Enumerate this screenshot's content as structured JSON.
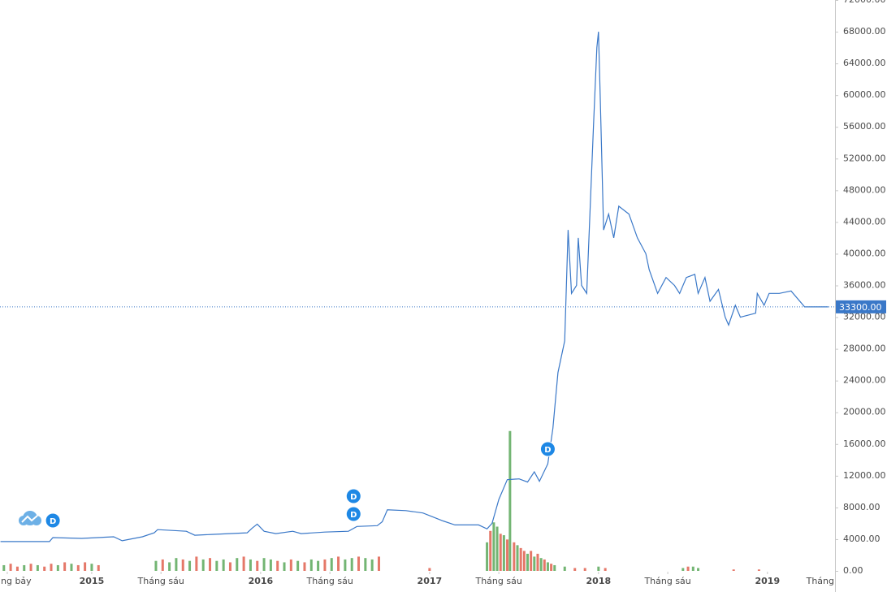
{
  "chart_data": {
    "type": "line",
    "color": "#3a78c8",
    "xlim": [
      2014.457,
      2019.4
    ],
    "xticks": [
      {
        "value": 2014.5,
        "label": "ng bảy"
      },
      2015,
      {
        "value": 2015.41,
        "label": "Tháng sáu"
      },
      2016,
      {
        "value": 2016.41,
        "label": "Tháng sáu"
      },
      2017,
      {
        "value": 2017.41,
        "label": "Tháng sáu"
      },
      2018,
      {
        "value": 2018.41,
        "label": "Tháng sáu"
      },
      2019,
      {
        "value": 2019.41,
        "label": "Tháng"
      }
    ],
    "ylim": [
      0,
      72000
    ],
    "yticks": [
      {
        "value": 0,
        "label": "0.00"
      },
      {
        "value": 4000,
        "label": "4000.00"
      },
      {
        "value": 8000,
        "label": "8000.00"
      },
      {
        "value": 12000,
        "label": "12000.00"
      },
      {
        "value": 16000,
        "label": "16000.00"
      },
      {
        "value": 20000,
        "label": "20000.00"
      },
      {
        "value": 24000,
        "label": "24000.00"
      },
      {
        "value": 28000,
        "label": "28000.00"
      },
      {
        "value": 32000,
        "label": "32000.00"
      },
      {
        "value": 36000,
        "label": "36000.00"
      },
      {
        "value": 40000,
        "label": "40000.00"
      },
      {
        "value": 44000,
        "label": "44000.00"
      },
      {
        "value": 48000,
        "label": "48000.00"
      },
      {
        "value": 52000,
        "label": "52000.00"
      },
      {
        "value": 56000,
        "label": "56000.00"
      },
      {
        "value": 60000,
        "label": "60000.00"
      },
      {
        "value": 64000,
        "label": "64000.00"
      },
      {
        "value": 68000,
        "label": "68000.00"
      },
      {
        "value": 72000,
        "label": "72000.00"
      }
    ],
    "x": [
      2014.46,
      2014.75,
      2014.77,
      2014.94,
      2015.13,
      2015.18,
      2015.3,
      2015.37,
      2015.39,
      2015.56,
      2015.61,
      2015.71,
      2015.92,
      2015.95,
      2015.98,
      2016.02,
      2016.09,
      2016.19,
      2016.24,
      2016.38,
      2016.52,
      2016.57,
      2016.69,
      2016.72,
      2016.75,
      2016.86,
      2016.96,
      2017.08,
      2017.15,
      2017.29,
      2017.34,
      2017.37,
      2017.41,
      2017.46,
      2017.53,
      2017.58,
      2017.62,
      2017.65,
      2017.7,
      2017.73,
      2017.76,
      2017.8,
      2017.82,
      2017.84,
      2017.87,
      2017.88,
      2017.9,
      2017.93,
      2017.97,
      2017.99,
      2018.0,
      2018.01,
      2018.03,
      2018.06,
      2018.09,
      2018.12,
      2018.18,
      2018.23,
      2018.28,
      2018.3,
      2018.35,
      2018.4,
      2018.45,
      2018.48,
      2018.52,
      2018.57,
      2018.59,
      2018.63,
      2018.66,
      2018.71,
      2018.75,
      2018.77,
      2018.81,
      2018.84,
      2018.93,
      2018.94,
      2018.98,
      2019.01,
      2019.07,
      2019.14,
      2019.22,
      2019.36
    ],
    "values": [
      3700,
      3700,
      4200,
      4100,
      4300,
      3800,
      4300,
      4800,
      5200,
      5000,
      4500,
      4600,
      4800,
      5400,
      5900,
      5000,
      4700,
      5000,
      4700,
      4900,
      5000,
      5600,
      5700,
      6200,
      7700,
      7600,
      7300,
      6300,
      5800,
      5800,
      5300,
      6000,
      9000,
      11500,
      11600,
      11200,
      12500,
      11300,
      13500,
      18000,
      25000,
      29000,
      43000,
      35000,
      36000,
      42000,
      36000,
      35000,
      56000,
      66000,
      68000,
      60000,
      43000,
      45000,
      42000,
      46000,
      45000,
      42000,
      40000,
      38000,
      35000,
      37000,
      36000,
      35000,
      37000,
      37400,
      35000,
      37000,
      34000,
      35500,
      32000,
      31000,
      33500,
      32000,
      32500,
      35000,
      33500,
      35000,
      35000,
      35300,
      33300,
      33300
    ],
    "last_price": {
      "value": 33300,
      "label": "33300.00"
    },
    "volume": {
      "ylim": [
        0,
        400
      ],
      "up_color": "#5aa85a",
      "down_color": "#e0604f",
      "x": [
        2014.48,
        2014.52,
        2014.56,
        2014.6,
        2014.64,
        2014.68,
        2014.72,
        2014.76,
        2014.8,
        2014.84,
        2014.88,
        2014.92,
        2014.96,
        2015.0,
        2015.04,
        2015.38,
        2015.42,
        2015.46,
        2015.5,
        2015.54,
        2015.58,
        2015.62,
        2015.66,
        2015.7,
        2015.74,
        2015.78,
        2015.82,
        2015.86,
        2015.9,
        2015.94,
        2015.98,
        2016.02,
        2016.06,
        2016.1,
        2016.14,
        2016.18,
        2016.22,
        2016.26,
        2016.3,
        2016.34,
        2016.38,
        2016.42,
        2016.46,
        2016.5,
        2016.54,
        2016.58,
        2016.62,
        2016.66,
        2016.7,
        2017.0,
        2017.34,
        2017.36,
        2017.38,
        2017.4,
        2017.42,
        2017.44,
        2017.46,
        2017.476,
        2017.5,
        2017.52,
        2017.54,
        2017.56,
        2017.58,
        2017.6,
        2017.62,
        2017.64,
        2017.66,
        2017.68,
        2017.7,
        2017.72,
        2017.74,
        2017.8,
        2017.86,
        2017.92,
        2018.0,
        2018.04,
        2018.5,
        2018.53,
        2018.56,
        2018.59,
        2018.8,
        2018.95
      ],
      "values": [
        4,
        5,
        3,
        4,
        5,
        4,
        3,
        5,
        4,
        6,
        5,
        4,
        6,
        5,
        4,
        7,
        8,
        6,
        9,
        8,
        7,
        10,
        8,
        9,
        7,
        8,
        6,
        9,
        10,
        8,
        7,
        9,
        8,
        7,
        6,
        8,
        7,
        6,
        8,
        7,
        8,
        9,
        10,
        8,
        9,
        10,
        9,
        8,
        10,
        2,
        20,
        28,
        34,
        31,
        26,
        25,
        22,
        98,
        20,
        18,
        16,
        14,
        12,
        14,
        10,
        12,
        9,
        8,
        6,
        5,
        4,
        3,
        2,
        2,
        3,
        2,
        2,
        3,
        3,
        2,
        1,
        1
      ],
      "up": [
        true,
        false,
        false,
        true,
        false,
        true,
        false,
        false,
        true,
        false,
        true,
        false,
        false,
        true,
        false,
        true,
        false,
        true,
        true,
        false,
        true,
        false,
        true,
        false,
        true,
        true,
        false,
        true,
        false,
        true,
        false,
        true,
        true,
        false,
        true,
        false,
        true,
        false,
        true,
        true,
        false,
        true,
        false,
        true,
        true,
        false,
        true,
        true,
        false,
        false,
        true,
        false,
        true,
        true,
        false,
        true,
        false,
        true,
        false,
        true,
        false,
        false,
        true,
        false,
        true,
        false,
        true,
        false,
        true,
        false,
        true,
        true,
        false,
        false,
        true,
        false,
        true,
        false,
        true,
        true,
        false,
        false
      ]
    },
    "events": [
      {
        "label": "D",
        "x": 2014.77
      },
      {
        "label": "D",
        "x": 2016.55
      },
      {
        "label": "D",
        "x": 2016.55
      },
      {
        "label": "D",
        "x": 2017.7
      }
    ]
  }
}
